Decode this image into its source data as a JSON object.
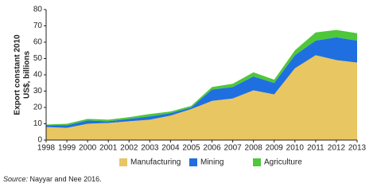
{
  "chart_data": {
    "type": "stacked_area",
    "y_label": [
      "Export constant 2010",
      "US$, billions"
    ],
    "x": [
      1998,
      1999,
      2000,
      2001,
      2002,
      2003,
      2004,
      2005,
      2006,
      2007,
      2008,
      2009,
      2010,
      2011,
      2012,
      2013
    ],
    "xlim": [
      1998,
      2013
    ],
    "xticks": [
      1998,
      1999,
      2000,
      2001,
      2002,
      2003,
      2004,
      2005,
      2006,
      2007,
      2008,
      2009,
      2010,
      2011,
      2012,
      2013
    ],
    "ylim": [
      0,
      80
    ],
    "yticks": [
      0,
      10,
      20,
      30,
      40,
      50,
      60,
      70,
      80
    ],
    "grid": false,
    "legend": "bottom",
    "series": [
      {
        "name": "Manufacturing",
        "color": "#e8c661",
        "values": [
          8,
          7.5,
          10,
          10.5,
          11.5,
          12.5,
          15,
          19,
          24,
          25.5,
          30.5,
          28,
          44,
          52,
          49,
          47.5
        ]
      },
      {
        "name": "Mining",
        "color": "#1f6fe0",
        "values": [
          1,
          1.5,
          2,
          1,
          1.5,
          2,
          1.5,
          1,
          7,
          7,
          8.5,
          7,
          8,
          9,
          14,
          13.5
        ]
      },
      {
        "name": "Agriculture",
        "color": "#4fc73a",
        "values": [
          0.5,
          1,
          1,
          1,
          1,
          1.5,
          1,
          1,
          1.5,
          2,
          2.5,
          2,
          3,
          5,
          4.5,
          4.5
        ]
      }
    ],
    "source_label": "Source:",
    "source_text": "Nayyar and Nee 2016."
  }
}
